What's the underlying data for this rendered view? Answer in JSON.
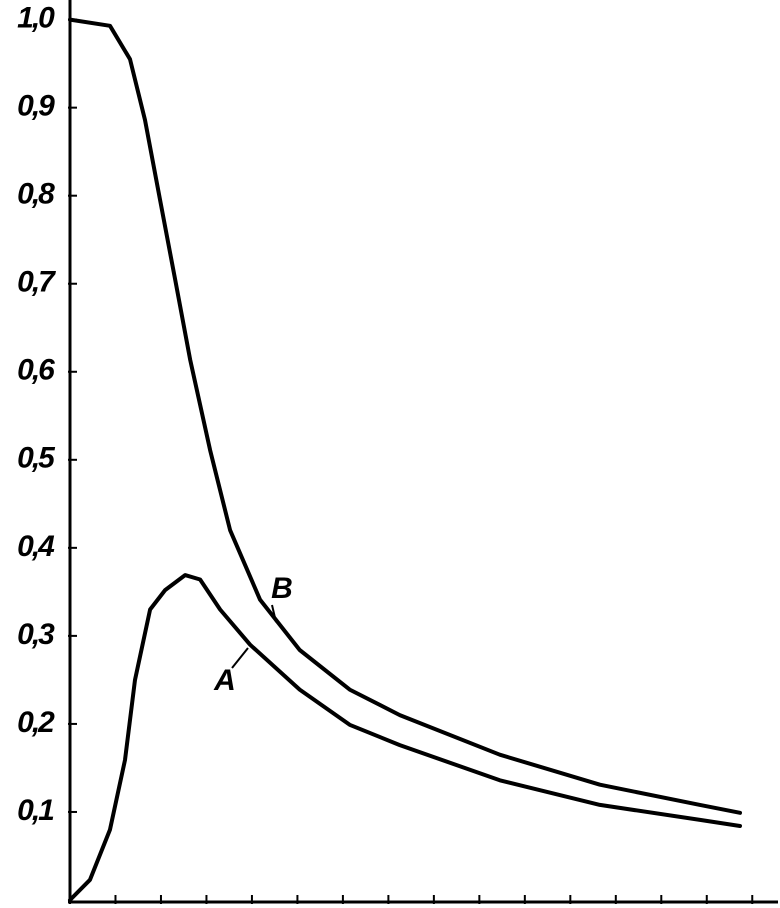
{
  "chart_data": {
    "type": "line",
    "xlim": [
      0,
      15.5
    ],
    "xticks": [
      0,
      1,
      2,
      3,
      4,
      5,
      6,
      7,
      8,
      9,
      10,
      11,
      12,
      13,
      14,
      15
    ],
    "ylim": [
      0,
      1.02
    ],
    "yticks": [
      {
        "value": 0.1,
        "label": "0,1"
      },
      {
        "value": 0.2,
        "label": "0,2"
      },
      {
        "value": 0.3,
        "label": "0,3"
      },
      {
        "value": 0.4,
        "label": "0,4"
      },
      {
        "value": 0.5,
        "label": "0,5"
      },
      {
        "value": 0.6,
        "label": "0,6"
      },
      {
        "value": 0.7,
        "label": "0,7"
      },
      {
        "value": 0.8,
        "label": "0,8"
      },
      {
        "value": 0.9,
        "label": "0,9"
      },
      {
        "value": 1.0,
        "label": "1,0"
      }
    ],
    "series": [
      {
        "name": "A",
        "color": "#000000",
        "x": [
          0,
          0.44,
          0.88,
          1.21,
          1.43,
          1.76,
          2.09,
          2.53,
          2.86,
          3.3,
          3.96,
          5.05,
          6.15,
          7.25,
          9.45,
          11.65,
          13.85,
          14.73
        ],
        "values": [
          0,
          0.023,
          0.08,
          0.159,
          0.25,
          0.33,
          0.352,
          0.369,
          0.364,
          0.33,
          0.29,
          0.239,
          0.199,
          0.176,
          0.136,
          0.108,
          0.091,
          0.084
        ]
      },
      {
        "name": "B",
        "color": "#000000",
        "x": [
          0,
          0.88,
          1.32,
          1.65,
          1.98,
          2.31,
          2.64,
          3.08,
          3.52,
          4.18,
          5.05,
          6.15,
          7.25,
          9.45,
          11.65,
          13.85,
          14.73
        ],
        "values": [
          1.0,
          0.993,
          0.955,
          0.886,
          0.795,
          0.705,
          0.614,
          0.511,
          0.42,
          0.341,
          0.284,
          0.239,
          0.21,
          0.165,
          0.131,
          0.108,
          0.099
        ]
      }
    ]
  }
}
